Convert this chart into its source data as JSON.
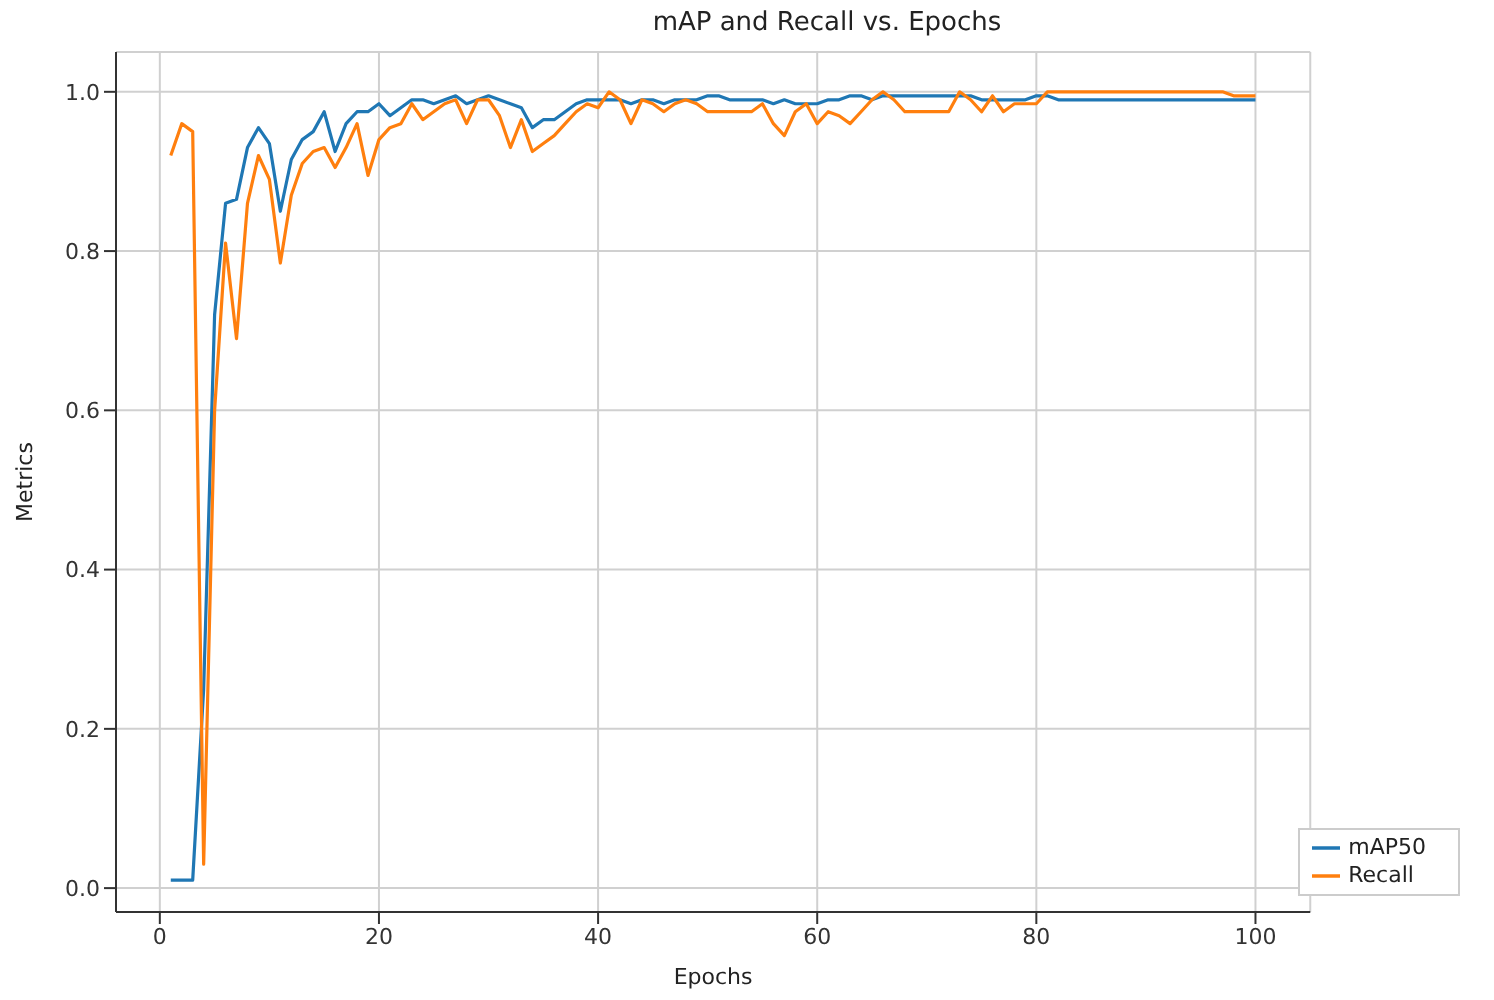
{
  "chart_data": {
    "type": "line",
    "title": "mAP and Recall vs. Epochs",
    "xlabel": "Epochs",
    "ylabel": "Metrics",
    "x": [
      1,
      2,
      3,
      4,
      5,
      6,
      7,
      8,
      9,
      10,
      11,
      12,
      13,
      14,
      15,
      16,
      17,
      18,
      19,
      20,
      21,
      22,
      23,
      24,
      25,
      26,
      27,
      28,
      29,
      30,
      31,
      32,
      33,
      34,
      35,
      36,
      37,
      38,
      39,
      40,
      41,
      42,
      43,
      44,
      45,
      46,
      47,
      48,
      49,
      50,
      51,
      52,
      53,
      54,
      55,
      56,
      57,
      58,
      59,
      60,
      61,
      62,
      63,
      64,
      65,
      66,
      67,
      68,
      69,
      70,
      71,
      72,
      73,
      74,
      75,
      76,
      77,
      78,
      79,
      80,
      81,
      82,
      83,
      84,
      85,
      86,
      87,
      88,
      89,
      90,
      91,
      92,
      93,
      94,
      95,
      96,
      97,
      98,
      99,
      100
    ],
    "series": [
      {
        "name": "mAP50",
        "color": "#1f77b4",
        "values": [
          0.01,
          0.01,
          0.01,
          0.25,
          0.72,
          0.86,
          0.865,
          0.93,
          0.955,
          0.935,
          0.85,
          0.915,
          0.94,
          0.95,
          0.975,
          0.925,
          0.96,
          0.975,
          0.975,
          0.985,
          0.97,
          0.98,
          0.99,
          0.99,
          0.985,
          0.99,
          0.995,
          0.985,
          0.99,
          0.995,
          0.99,
          0.985,
          0.98,
          0.955,
          0.965,
          0.965,
          0.975,
          0.985,
          0.99,
          0.99,
          0.99,
          0.99,
          0.985,
          0.99,
          0.99,
          0.985,
          0.99,
          0.99,
          0.99,
          0.995,
          0.995,
          0.99,
          0.99,
          0.99,
          0.99,
          0.985,
          0.99,
          0.985,
          0.985,
          0.985,
          0.99,
          0.99,
          0.995,
          0.995,
          0.99,
          0.995,
          0.995,
          0.995,
          0.995,
          0.995,
          0.995,
          0.995,
          0.995,
          0.995,
          0.99,
          0.99,
          0.99,
          0.99,
          0.99,
          0.995,
          0.995,
          0.99,
          0.99,
          0.99,
          0.99,
          0.99,
          0.99,
          0.99,
          0.99,
          0.99,
          0.99,
          0.99,
          0.99,
          0.99,
          0.99,
          0.99,
          0.99,
          0.99,
          0.99,
          0.99
        ]
      },
      {
        "name": "Recall",
        "color": "#ff7f0e",
        "values": [
          0.92,
          0.96,
          0.95,
          0.03,
          0.6,
          0.81,
          0.69,
          0.86,
          0.92,
          0.89,
          0.785,
          0.87,
          0.91,
          0.925,
          0.93,
          0.905,
          0.93,
          0.96,
          0.895,
          0.94,
          0.955,
          0.96,
          0.985,
          0.965,
          0.975,
          0.985,
          0.99,
          0.96,
          0.99,
          0.99,
          0.97,
          0.93,
          0.965,
          0.925,
          0.935,
          0.945,
          0.96,
          0.975,
          0.985,
          0.98,
          1.0,
          0.99,
          0.96,
          0.99,
          0.985,
          0.975,
          0.985,
          0.99,
          0.985,
          0.975,
          0.975,
          0.975,
          0.975,
          0.975,
          0.985,
          0.96,
          0.945,
          0.975,
          0.985,
          0.96,
          0.975,
          0.97,
          0.96,
          0.975,
          0.99,
          1.0,
          0.99,
          0.975,
          0.975,
          0.975,
          0.975,
          0.975,
          1.0,
          0.99,
          0.975,
          0.995,
          0.975,
          0.985,
          0.985,
          0.985,
          1.0,
          1.0,
          1.0,
          1.0,
          1.0,
          1.0,
          1.0,
          1.0,
          1.0,
          1.0,
          1.0,
          1.0,
          1.0,
          1.0,
          1.0,
          1.0,
          1.0,
          0.995,
          0.995,
          0.995
        ]
      }
    ],
    "xlim": [
      -4,
      105
    ],
    "xticks": [
      0,
      20,
      40,
      60,
      80,
      100
    ],
    "ylim": [
      -0.03,
      1.05
    ],
    "yticks": [
      {
        "value": 0,
        "label": "0.0"
      },
      0.2,
      0.4,
      0.6,
      0.8,
      {
        "value": 1,
        "label": "1.0"
      }
    ],
    "grid": true,
    "legend": "bottom right",
    "marker": "none",
    "line_style": "solid"
  }
}
